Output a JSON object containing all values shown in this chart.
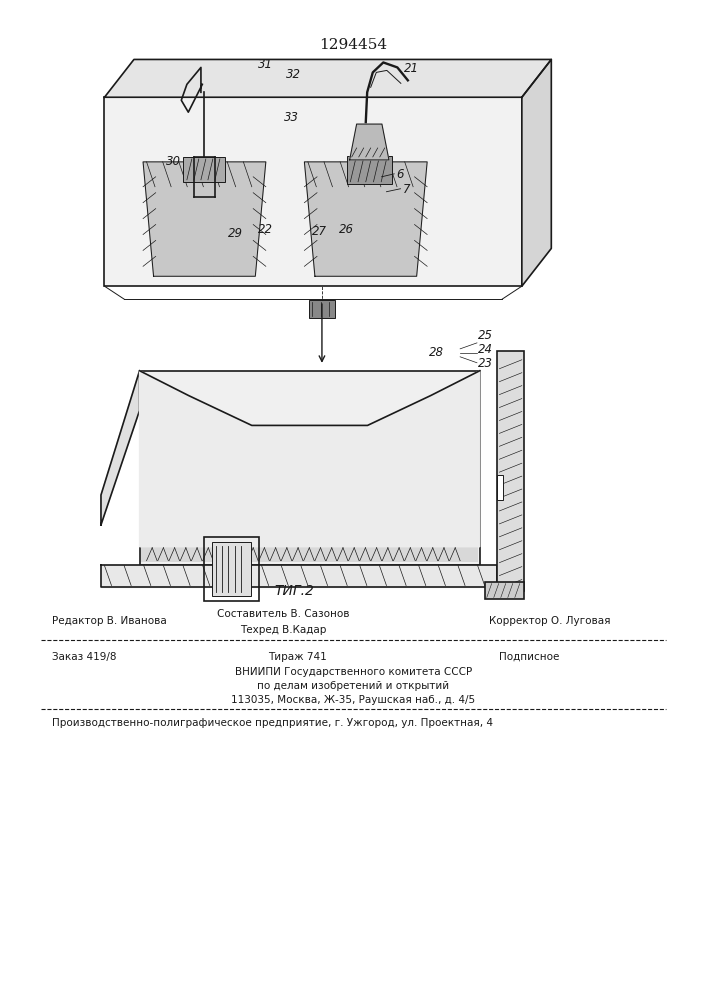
{
  "patent_number": "1294454",
  "figure_label": "ΤИГ.2",
  "bg_color": "#ffffff",
  "line_color": "#1a1a1a",
  "footer": {
    "line1_left": "Редактор В. Иванова",
    "line1_center_top": "Составитель В. Сазонов",
    "line1_center_bot": "Техред В.Кадар",
    "line1_right": "Корректор О. Луговая",
    "line2_col1": "Заказ 419/8",
    "line2_col2": "Тираж 741",
    "line2_col3": "Подписное",
    "line3": "ВНИИПИ Государственного комитета СССР",
    "line4": "по делам изобретений и открытий",
    "line5": "113035, Москва, Ж-35, Раушская наб., д. 4/5",
    "line6": "Производственно-полиграфическое предприятие, г. Ужгород, ул. Проектная, 4"
  }
}
